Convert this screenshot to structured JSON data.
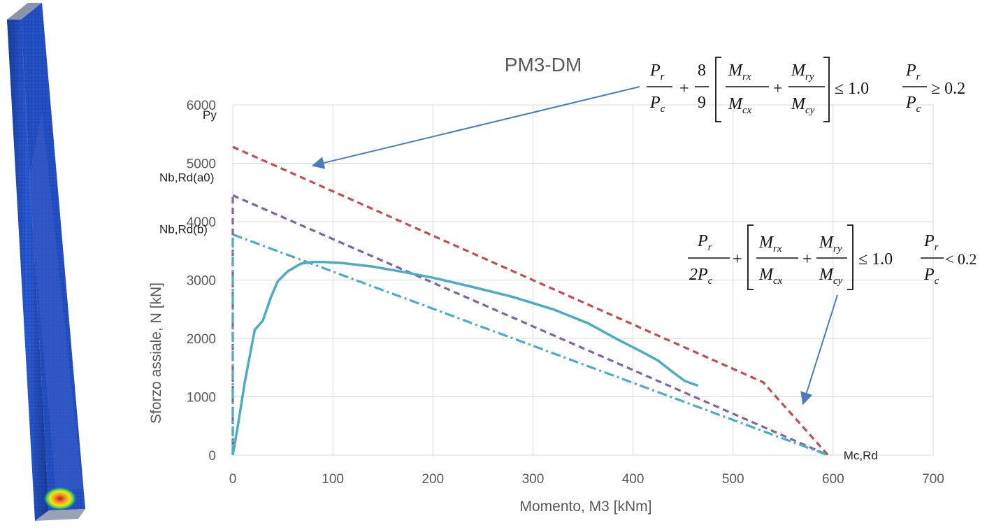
{
  "chart_data": {
    "type": "line",
    "title": "PM3-DM",
    "xlabel": "Momento, M3 [kNm]",
    "ylabel": "Sforzo assiale, N [kN]",
    "xlim": [
      0,
      700
    ],
    "ylim": [
      0,
      6000
    ],
    "x_ticks": [
      0,
      100,
      200,
      300,
      400,
      500,
      600,
      700
    ],
    "y_ticks": [
      0,
      1000,
      2000,
      3000,
      4000,
      5000,
      6000
    ],
    "grid": true,
    "series": [
      {
        "name": "Py interaction",
        "style": "dashed",
        "color": "#c0504d",
        "points": [
          [
            0,
            5280
          ],
          [
            530,
            1250
          ],
          [
            595,
            0
          ]
        ]
      },
      {
        "name": "Nb,Rd(a0) interaction",
        "style": "dashed",
        "color": "#8064a2",
        "points": [
          [
            0,
            4450
          ],
          [
            595,
            0
          ]
        ]
      },
      {
        "name": "Nb,Rd(b) interaction",
        "style": "dashdot",
        "color": "#4bacc6",
        "points": [
          [
            0,
            3780
          ],
          [
            595,
            0
          ]
        ]
      },
      {
        "name": "Nb,Rd(a0) vertical",
        "style": "dashed",
        "color": "#8064a2",
        "points": [
          [
            0,
            0
          ],
          [
            0,
            4450
          ]
        ]
      },
      {
        "name": "Nb,Rd(b) vertical",
        "style": "dashdot",
        "color": "#4bacc6",
        "points": [
          [
            0,
            0
          ],
          [
            0,
            3780
          ]
        ]
      },
      {
        "name": "PM3-DM analysis",
        "style": "solid",
        "color": "#4bacc6",
        "points": [
          [
            0,
            0
          ],
          [
            5,
            500
          ],
          [
            12,
            1250
          ],
          [
            22,
            2150
          ],
          [
            30,
            2300
          ],
          [
            38,
            2700
          ],
          [
            45,
            2980
          ],
          [
            55,
            3150
          ],
          [
            68,
            3280
          ],
          [
            80,
            3310
          ],
          [
            90,
            3310
          ],
          [
            110,
            3290
          ],
          [
            140,
            3230
          ],
          [
            170,
            3140
          ],
          [
            200,
            3040
          ],
          [
            240,
            2880
          ],
          [
            280,
            2710
          ],
          [
            320,
            2500
          ],
          [
            355,
            2260
          ],
          [
            385,
            1980
          ],
          [
            410,
            1760
          ],
          [
            425,
            1620
          ],
          [
            440,
            1420
          ],
          [
            452,
            1270
          ],
          [
            465,
            1190
          ]
        ]
      }
    ],
    "annotations": [
      {
        "text": "Py",
        "y": 5280
      },
      {
        "text": "Nb,Rd(a0)",
        "y": 4450
      },
      {
        "text": "Nb,Rd(b)",
        "y": 3780
      },
      {
        "text": "Mc,Rd",
        "x": 595
      }
    ],
    "arrows": [
      {
        "to": [
          80,
          4960
        ]
      },
      {
        "to": [
          570,
          880
        ]
      }
    ],
    "formulas": [
      {
        "lhs_num": "P",
        "lhs_num_sub": "r",
        "lhs_den": "P",
        "lhs_den_sub": "c",
        "factor_num": "8",
        "factor_den": "9",
        "m1_num": "M",
        "m1_num_sub": "rx",
        "m1_den": "M",
        "m1_den_sub": "cx",
        "m2_num": "M",
        "m2_num_sub": "ry",
        "m2_den": "M",
        "m2_den_sub": "cy",
        "rhs": "≤ 1.0",
        "cond_num": "P",
        "cond_num_sub": "r",
        "cond_den": "P",
        "cond_den_sub": "c",
        "cond_rel": "≥ 0.2"
      },
      {
        "lhs_num": "P",
        "lhs_num_sub": "r",
        "lhs_den": "2P",
        "lhs_den_sub": "c",
        "m1_num": "M",
        "m1_num_sub": "rx",
        "m1_den": "M",
        "m1_den_sub": "cx",
        "m2_num": "M",
        "m2_num_sub": "ry",
        "m2_den": "M",
        "m2_den_sub": "cy",
        "rhs": "≤ 1.0",
        "cond_num": "P",
        "cond_num_sub": "r",
        "cond_den": "P",
        "cond_den_sub": "c",
        "cond_rel": "< 0.2"
      }
    ]
  }
}
